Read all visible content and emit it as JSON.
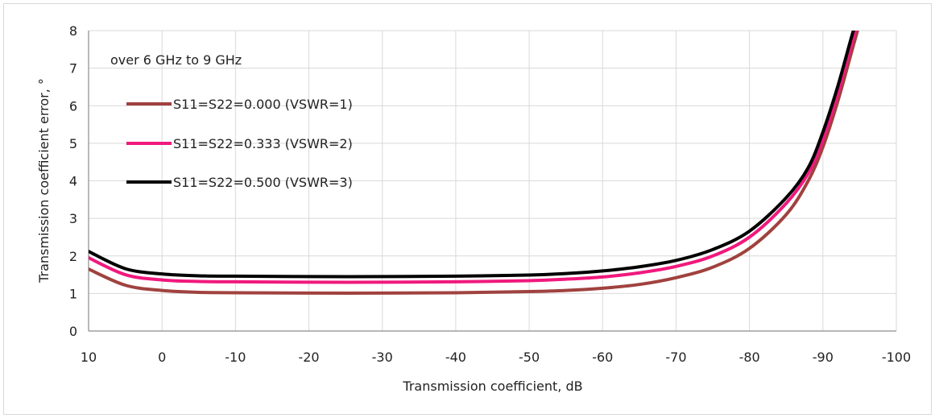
{
  "chart_data": {
    "type": "line",
    "title": "",
    "xlabel": "Transmission coefficient, dB",
    "ylabel": "Transmission coefficient error, °",
    "annotation": "over 6 GHz to 9 GHz",
    "xlim": [
      10,
      -100
    ],
    "ylim": [
      0,
      8
    ],
    "x_ticks": [
      10,
      0,
      -10,
      -20,
      -30,
      -40,
      -50,
      -60,
      -70,
      -80,
      -90,
      -100
    ],
    "y_ticks": [
      0,
      1,
      2,
      3,
      4,
      5,
      6,
      7,
      8
    ],
    "grid": true,
    "legend_position": "top-left",
    "series": [
      {
        "name": "S11=S22=0.000 (VSWR=1)",
        "color": "#a0423f",
        "x": [
          10,
          5,
          0,
          -5,
          -10,
          -20,
          -30,
          -40,
          -50,
          -55,
          -60,
          -65,
          -70,
          -75,
          -80,
          -85,
          -88,
          -90,
          -92,
          -94,
          -95
        ],
        "y": [
          1.65,
          1.22,
          1.08,
          1.03,
          1.02,
          1.01,
          1.01,
          1.02,
          1.05,
          1.08,
          1.14,
          1.24,
          1.42,
          1.7,
          2.2,
          3.1,
          4.0,
          4.9,
          6.1,
          7.5,
          8.2
        ]
      },
      {
        "name": "S11=S22=0.333 (VSWR=2)",
        "color": "#f0197d",
        "x": [
          10,
          5,
          0,
          -5,
          -10,
          -20,
          -30,
          -40,
          -50,
          -55,
          -60,
          -65,
          -70,
          -75,
          -80,
          -85,
          -88,
          -90,
          -92,
          -94,
          -95
        ],
        "y": [
          1.95,
          1.5,
          1.36,
          1.32,
          1.31,
          1.3,
          1.3,
          1.31,
          1.34,
          1.38,
          1.44,
          1.55,
          1.72,
          2.0,
          2.5,
          3.4,
          4.2,
          5.1,
          6.3,
          7.7,
          8.3
        ]
      },
      {
        "name": "S11=S22=0.500 (VSWR=3)",
        "color": "#000000",
        "x": [
          10,
          5,
          0,
          -5,
          -10,
          -20,
          -30,
          -40,
          -50,
          -55,
          -60,
          -65,
          -70,
          -75,
          -80,
          -85,
          -88,
          -90,
          -92,
          -94,
          -95
        ],
        "y": [
          2.12,
          1.66,
          1.52,
          1.47,
          1.46,
          1.45,
          1.45,
          1.46,
          1.49,
          1.53,
          1.6,
          1.71,
          1.88,
          2.17,
          2.66,
          3.55,
          4.35,
          5.3,
          6.5,
          7.9,
          8.5
        ]
      }
    ]
  }
}
